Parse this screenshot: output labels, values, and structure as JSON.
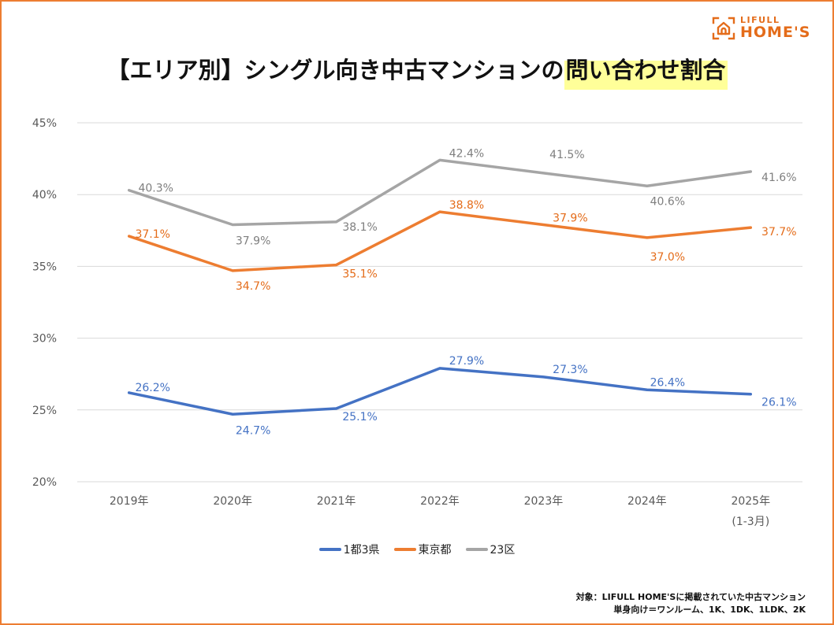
{
  "brand": {
    "logo_icon": "house-in-frame-icon",
    "line1": "LIFULL",
    "line2": "HOME'S",
    "color": "#E46C1A"
  },
  "title": {
    "main": "【エリア別】シングル向き中古マンションの",
    "highlight": "問い合わせ割合",
    "highlight_color": "#FFFF99"
  },
  "frame_color": "#ED7D31",
  "chart_data": {
    "type": "line",
    "title": "【エリア別】シングル向き中古マンションの問い合わせ割合",
    "xlabel": "",
    "ylabel": "",
    "categories": [
      "2019年",
      "2020年",
      "2021年",
      "2022年",
      "2023年",
      "2024年",
      "2025年"
    ],
    "category_sublabels": [
      "",
      "",
      "",
      "",
      "",
      "",
      "(1-3月)"
    ],
    "ylim": [
      20,
      45
    ],
    "yticks": [
      20,
      25,
      30,
      35,
      40,
      45
    ],
    "ytick_labels": [
      "20%",
      "25%",
      "30%",
      "35%",
      "40%",
      "45%"
    ],
    "grid": true,
    "legend_position": "bottom",
    "series": [
      {
        "name": "1都3県",
        "color": "#4472C4",
        "values": [
          26.2,
          24.7,
          25.1,
          27.9,
          27.3,
          26.4,
          26.1
        ],
        "labels": [
          "26.2%",
          "24.7%",
          "25.1%",
          "27.9%",
          "27.3%",
          "26.4%",
          "26.1%"
        ]
      },
      {
        "name": "東京都",
        "color": "#ED7D31",
        "values": [
          37.1,
          34.7,
          35.1,
          38.8,
          37.9,
          37.0,
          37.7
        ],
        "labels": [
          "37.1%",
          "34.7%",
          "35.1%",
          "38.8%",
          "37.9%",
          "37.0%",
          "37.7%"
        ]
      },
      {
        "name": "23区",
        "color": "#A5A5A5",
        "values": [
          40.3,
          37.9,
          38.1,
          42.4,
          41.5,
          40.6,
          41.6
        ],
        "labels": [
          "40.3%",
          "37.9%",
          "38.1%",
          "42.4%",
          "41.5%",
          "40.6%",
          "41.6%"
        ]
      }
    ]
  },
  "footnote": {
    "line1": "対象：LIFULL HOME'Sに掲載されていた中古マンション",
    "line2": "単身向け＝ワンルーム、1K、1DK、1LDK、2K"
  }
}
